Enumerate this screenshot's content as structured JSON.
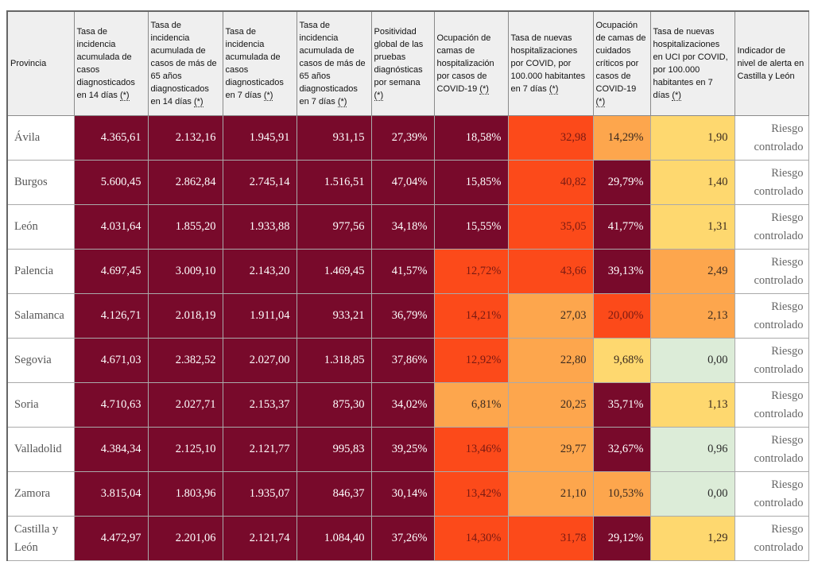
{
  "palette": {
    "m": "#780a2b",
    "r": "#fc4a1a",
    "o": "#fda64d",
    "y": "#fed86f",
    "g": "#dcecd8"
  },
  "text_colors": {
    "m": "#ffffff",
    "r": "#7a1a12",
    "o": "#3a2a20",
    "y": "#3a2a20",
    "g": "#2a2a2a"
  },
  "headers": [
    {
      "text": "Provincia",
      "note": ""
    },
    {
      "text": "Tasa de incidencia acumulada de casos diagnosticados en 14 días",
      "note": "(*)"
    },
    {
      "text": "Tasa de incidencia acumulada de casos de más de 65 años diagnosticados en 14 días",
      "note": "(*)"
    },
    {
      "text": "Tasa de incidencia acumulada de casos diagnosticados en 7 días",
      "note": "(*)"
    },
    {
      "text": "Tasa de incidencia acumulada de casos de más de 65 años diagnosticados en 7 días",
      "note": "(*)"
    },
    {
      "text": "Positividad global de las pruebas diagnósticas por semana",
      "note": "(*)"
    },
    {
      "text": "Ocupación de camas de hospitalización por casos de COVID-19",
      "note": "(*)"
    },
    {
      "text": "Tasa de nuevas hospitalizaciones por COVID, por 100.000 habitantes en 7 días",
      "note": "(*)"
    },
    {
      "text": "Ocupación de camas de cuidados críticos por casos de COVID-19",
      "note": "(*)"
    },
    {
      "text": "Tasa de nuevas hospitalizaciones en UCI por COVID, por 100.000 habitantes en 7 días",
      "note": "(*)"
    },
    {
      "text": "Indicador de nivel de alerta en Castilla y León",
      "note": ""
    }
  ],
  "rows": [
    {
      "province": "Ávila",
      "values": [
        "4.365,61",
        "2.132,16",
        "1.945,91",
        "931,15",
        "27,39%",
        "18,58%",
        "32,98",
        "14,29%",
        "1,90"
      ],
      "levels": [
        "m",
        "m",
        "m",
        "m",
        "m",
        "m",
        "r",
        "o",
        "y"
      ],
      "alert": "Riesgo controlado"
    },
    {
      "province": "Burgos",
      "values": [
        "5.600,45",
        "2.862,84",
        "2.745,14",
        "1.516,51",
        "47,04%",
        "15,85%",
        "40,82",
        "29,79%",
        "1,40"
      ],
      "levels": [
        "m",
        "m",
        "m",
        "m",
        "m",
        "m",
        "r",
        "m",
        "y"
      ],
      "alert": "Riesgo controlado"
    },
    {
      "province": "León",
      "values": [
        "4.031,64",
        "1.855,20",
        "1.933,88",
        "977,56",
        "34,18%",
        "15,55%",
        "35,05",
        "41,77%",
        "1,31"
      ],
      "levels": [
        "m",
        "m",
        "m",
        "m",
        "m",
        "m",
        "r",
        "m",
        "y"
      ],
      "alert": "Riesgo controlado"
    },
    {
      "province": "Palencia",
      "values": [
        "4.697,45",
        "3.009,10",
        "2.143,20",
        "1.469,45",
        "41,57%",
        "12,72%",
        "43,66",
        "39,13%",
        "2,49"
      ],
      "levels": [
        "m",
        "m",
        "m",
        "m",
        "m",
        "r",
        "r",
        "m",
        "o"
      ],
      "alert": "Riesgo controlado"
    },
    {
      "province": "Salamanca",
      "values": [
        "4.126,71",
        "2.018,19",
        "1.911,04",
        "933,21",
        "36,79%",
        "14,21%",
        "27,03",
        "20,00%",
        "2,13"
      ],
      "levels": [
        "m",
        "m",
        "m",
        "m",
        "m",
        "r",
        "o",
        "r",
        "o"
      ],
      "alert": "Riesgo controlado"
    },
    {
      "province": "Segovia",
      "values": [
        "4.671,03",
        "2.382,52",
        "2.027,00",
        "1.318,85",
        "37,86%",
        "12,92%",
        "22,80",
        "9,68%",
        "0,00"
      ],
      "levels": [
        "m",
        "m",
        "m",
        "m",
        "m",
        "r",
        "o",
        "y",
        "g"
      ],
      "alert": "Riesgo controlado"
    },
    {
      "province": "Soria",
      "values": [
        "4.710,63",
        "2.027,71",
        "2.153,37",
        "875,30",
        "34,02%",
        "6,81%",
        "20,25",
        "35,71%",
        "1,13"
      ],
      "levels": [
        "m",
        "m",
        "m",
        "m",
        "m",
        "o",
        "o",
        "m",
        "y"
      ],
      "alert": "Riesgo controlado"
    },
    {
      "province": "Valladolid",
      "values": [
        "4.384,34",
        "2.125,10",
        "2.121,77",
        "995,83",
        "39,25%",
        "13,46%",
        "29,77",
        "32,67%",
        "0,96"
      ],
      "levels": [
        "m",
        "m",
        "m",
        "m",
        "m",
        "r",
        "o",
        "m",
        "g"
      ],
      "alert": "Riesgo controlado"
    },
    {
      "province": "Zamora",
      "values": [
        "3.815,04",
        "1.803,96",
        "1.935,07",
        "846,37",
        "30,14%",
        "13,42%",
        "21,10",
        "10,53%",
        "0,00"
      ],
      "levels": [
        "m",
        "m",
        "m",
        "m",
        "m",
        "r",
        "o",
        "o",
        "g"
      ],
      "alert": "Riesgo controlado"
    },
    {
      "province": "Castilla y León",
      "values": [
        "4.472,97",
        "2.201,06",
        "2.121,74",
        "1.084,40",
        "37,26%",
        "14,30%",
        "31,78",
        "29,12%",
        "1,29"
      ],
      "levels": [
        "m",
        "m",
        "m",
        "m",
        "m",
        "r",
        "r",
        "m",
        "y"
      ],
      "alert": "Riesgo controlado"
    }
  ]
}
